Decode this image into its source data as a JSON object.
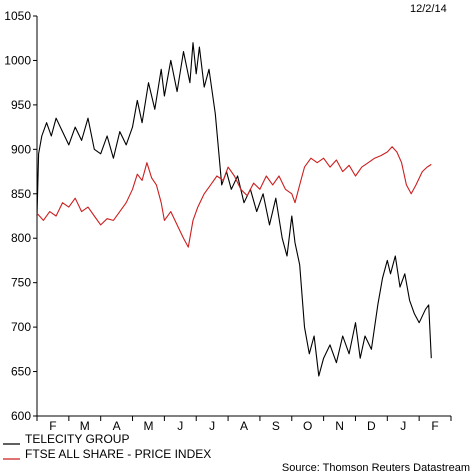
{
  "chart_data": {
    "type": "line",
    "date_stamp": "12/2/14",
    "source": "Source: Thomson Reuters Datastream",
    "x_ticks": [
      "F",
      "M",
      "A",
      "M",
      "J",
      "J",
      "A",
      "S",
      "O",
      "N",
      "D",
      "J",
      "F"
    ],
    "y_ticks": [
      600,
      650,
      700,
      750,
      800,
      850,
      900,
      950,
      1000,
      1050
    ],
    "ylim": [
      600,
      1050
    ],
    "grid": false,
    "legend_position": "bottom-left",
    "series": [
      {
        "name": "TELECITY GROUP",
        "color": "#000000",
        "points": [
          [
            0.0,
            825
          ],
          [
            0.05,
            895
          ],
          [
            0.15,
            915
          ],
          [
            0.3,
            930
          ],
          [
            0.45,
            915
          ],
          [
            0.6,
            935
          ],
          [
            0.8,
            920
          ],
          [
            1.0,
            905
          ],
          [
            1.2,
            925
          ],
          [
            1.4,
            910
          ],
          [
            1.6,
            935
          ],
          [
            1.8,
            900
          ],
          [
            2.0,
            895
          ],
          [
            2.2,
            915
          ],
          [
            2.4,
            890
          ],
          [
            2.6,
            920
          ],
          [
            2.8,
            905
          ],
          [
            3.0,
            925
          ],
          [
            3.15,
            955
          ],
          [
            3.3,
            930
          ],
          [
            3.5,
            975
          ],
          [
            3.7,
            945
          ],
          [
            3.9,
            990
          ],
          [
            4.0,
            960
          ],
          [
            4.2,
            1000
          ],
          [
            4.4,
            965
          ],
          [
            4.6,
            1010
          ],
          [
            4.8,
            975
          ],
          [
            4.9,
            1020
          ],
          [
            5.0,
            985
          ],
          [
            5.1,
            1015
          ],
          [
            5.25,
            970
          ],
          [
            5.4,
            990
          ],
          [
            5.6,
            940
          ],
          [
            5.7,
            900
          ],
          [
            5.8,
            860
          ],
          [
            5.95,
            875
          ],
          [
            6.1,
            855
          ],
          [
            6.3,
            870
          ],
          [
            6.5,
            840
          ],
          [
            6.7,
            855
          ],
          [
            6.9,
            830
          ],
          [
            7.1,
            850
          ],
          [
            7.3,
            815
          ],
          [
            7.5,
            845
          ],
          [
            7.7,
            800
          ],
          [
            7.85,
            780
          ],
          [
            8.0,
            825
          ],
          [
            8.1,
            795
          ],
          [
            8.25,
            770
          ],
          [
            8.4,
            700
          ],
          [
            8.55,
            670
          ],
          [
            8.7,
            690
          ],
          [
            8.85,
            645
          ],
          [
            9.0,
            665
          ],
          [
            9.2,
            680
          ],
          [
            9.4,
            660
          ],
          [
            9.6,
            690
          ],
          [
            9.8,
            670
          ],
          [
            10.0,
            705
          ],
          [
            10.15,
            665
          ],
          [
            10.3,
            690
          ],
          [
            10.5,
            675
          ],
          [
            10.7,
            725
          ],
          [
            10.85,
            755
          ],
          [
            11.0,
            775
          ],
          [
            11.1,
            760
          ],
          [
            11.25,
            780
          ],
          [
            11.4,
            745
          ],
          [
            11.55,
            760
          ],
          [
            11.7,
            730
          ],
          [
            11.85,
            715
          ],
          [
            12.0,
            705
          ],
          [
            12.2,
            720
          ],
          [
            12.3,
            725
          ],
          [
            12.38,
            665
          ]
        ]
      },
      {
        "name": "FTSE ALL SHARE - PRICE INDEX",
        "color": "#cc1f1f",
        "points": [
          [
            0.0,
            828
          ],
          [
            0.2,
            820
          ],
          [
            0.4,
            830
          ],
          [
            0.6,
            825
          ],
          [
            0.8,
            840
          ],
          [
            1.0,
            835
          ],
          [
            1.2,
            845
          ],
          [
            1.4,
            830
          ],
          [
            1.6,
            835
          ],
          [
            1.8,
            825
          ],
          [
            2.0,
            815
          ],
          [
            2.2,
            822
          ],
          [
            2.4,
            820
          ],
          [
            2.6,
            830
          ],
          [
            2.8,
            840
          ],
          [
            3.0,
            855
          ],
          [
            3.15,
            872
          ],
          [
            3.3,
            865
          ],
          [
            3.45,
            885
          ],
          [
            3.6,
            868
          ],
          [
            3.75,
            860
          ],
          [
            3.9,
            840
          ],
          [
            4.0,
            820
          ],
          [
            4.2,
            830
          ],
          [
            4.4,
            815
          ],
          [
            4.6,
            800
          ],
          [
            4.75,
            790
          ],
          [
            4.9,
            820
          ],
          [
            5.05,
            835
          ],
          [
            5.25,
            850
          ],
          [
            5.45,
            860
          ],
          [
            5.65,
            870
          ],
          [
            5.85,
            865
          ],
          [
            6.0,
            880
          ],
          [
            6.2,
            870
          ],
          [
            6.4,
            855
          ],
          [
            6.6,
            848
          ],
          [
            6.8,
            862
          ],
          [
            7.0,
            855
          ],
          [
            7.2,
            870
          ],
          [
            7.4,
            860
          ],
          [
            7.6,
            870
          ],
          [
            7.8,
            855
          ],
          [
            8.0,
            850
          ],
          [
            8.1,
            840
          ],
          [
            8.25,
            860
          ],
          [
            8.4,
            880
          ],
          [
            8.6,
            890
          ],
          [
            8.8,
            885
          ],
          [
            9.0,
            890
          ],
          [
            9.2,
            880
          ],
          [
            9.4,
            888
          ],
          [
            9.6,
            875
          ],
          [
            9.8,
            882
          ],
          [
            10.0,
            870
          ],
          [
            10.2,
            880
          ],
          [
            10.4,
            885
          ],
          [
            10.6,
            890
          ],
          [
            10.8,
            893
          ],
          [
            11.0,
            897
          ],
          [
            11.15,
            903
          ],
          [
            11.3,
            897
          ],
          [
            11.45,
            885
          ],
          [
            11.6,
            860
          ],
          [
            11.75,
            850
          ],
          [
            11.9,
            860
          ],
          [
            12.1,
            875
          ],
          [
            12.25,
            880
          ],
          [
            12.38,
            883
          ]
        ]
      }
    ]
  }
}
